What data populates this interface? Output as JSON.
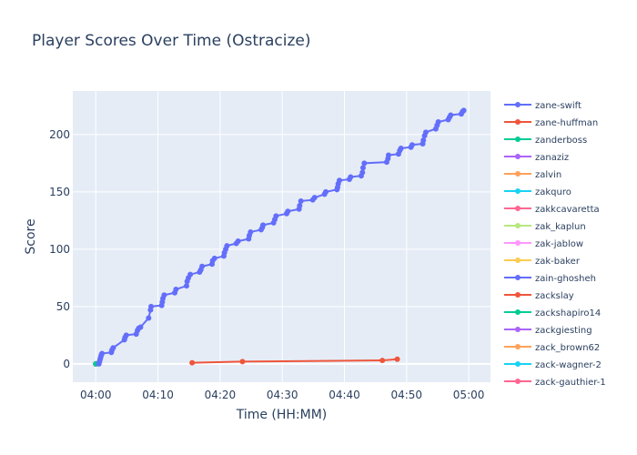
{
  "chart_data": {
    "type": "line",
    "title": "Player Scores Over Time (Ostracize)",
    "xlabel": "Time (HH:MM)",
    "ylabel": "Score",
    "x_ticks": [
      "04:00",
      "04:10",
      "04:20",
      "04:30",
      "04:40",
      "04:50",
      "05:00"
    ],
    "y_ticks": [
      0,
      50,
      100,
      150,
      200
    ],
    "x_range_minutes": [
      -3.7,
      63.5
    ],
    "y_range": [
      -16,
      238
    ],
    "grid": true,
    "legend_position": "right",
    "series": [
      {
        "name": "zane-swift",
        "color": "#636efa",
        "points": [
          {
            "t": 0.5,
            "y": 0
          },
          {
            "t": 0.6,
            "y": 2
          },
          {
            "t": 0.7,
            "y": 4
          },
          {
            "t": 0.8,
            "y": 6
          },
          {
            "t": 0.9,
            "y": 8
          },
          {
            "t": 1.0,
            "y": 9
          },
          {
            "t": 2.5,
            "y": 10
          },
          {
            "t": 2.6,
            "y": 12
          },
          {
            "t": 2.8,
            "y": 14
          },
          {
            "t": 4.6,
            "y": 21
          },
          {
            "t": 4.7,
            "y": 23
          },
          {
            "t": 4.9,
            "y": 25
          },
          {
            "t": 6.5,
            "y": 26
          },
          {
            "t": 6.7,
            "y": 29
          },
          {
            "t": 6.9,
            "y": 31
          },
          {
            "t": 7.2,
            "y": 32
          },
          {
            "t": 8.5,
            "y": 40
          },
          {
            "t": 8.8,
            "y": 47
          },
          {
            "t": 8.9,
            "y": 50
          },
          {
            "t": 10.6,
            "y": 51
          },
          {
            "t": 10.7,
            "y": 54
          },
          {
            "t": 10.8,
            "y": 57
          },
          {
            "t": 11.0,
            "y": 60
          },
          {
            "t": 12.7,
            "y": 62
          },
          {
            "t": 12.9,
            "y": 65
          },
          {
            "t": 14.6,
            "y": 68
          },
          {
            "t": 14.7,
            "y": 72
          },
          {
            "t": 14.9,
            "y": 75
          },
          {
            "t": 15.2,
            "y": 78
          },
          {
            "t": 16.7,
            "y": 80
          },
          {
            "t": 16.9,
            "y": 82
          },
          {
            "t": 17.1,
            "y": 85
          },
          {
            "t": 18.7,
            "y": 87
          },
          {
            "t": 18.8,
            "y": 90
          },
          {
            "t": 19.1,
            "y": 92
          },
          {
            "t": 20.6,
            "y": 94
          },
          {
            "t": 20.7,
            "y": 97
          },
          {
            "t": 20.9,
            "y": 100
          },
          {
            "t": 21.1,
            "y": 103
          },
          {
            "t": 22.6,
            "y": 105
          },
          {
            "t": 22.9,
            "y": 107
          },
          {
            "t": 24.6,
            "y": 109
          },
          {
            "t": 24.7,
            "y": 112
          },
          {
            "t": 24.9,
            "y": 115
          },
          {
            "t": 26.6,
            "y": 117
          },
          {
            "t": 26.8,
            "y": 119
          },
          {
            "t": 26.9,
            "y": 121
          },
          {
            "t": 28.6,
            "y": 123
          },
          {
            "t": 28.8,
            "y": 126
          },
          {
            "t": 29.0,
            "y": 129
          },
          {
            "t": 30.7,
            "y": 131
          },
          {
            "t": 30.9,
            "y": 133
          },
          {
            "t": 32.7,
            "y": 135
          },
          {
            "t": 32.8,
            "y": 138
          },
          {
            "t": 33.0,
            "y": 142
          },
          {
            "t": 34.9,
            "y": 143
          },
          {
            "t": 35.2,
            "y": 145
          },
          {
            "t": 36.8,
            "y": 148
          },
          {
            "t": 37.0,
            "y": 150
          },
          {
            "t": 38.8,
            "y": 152
          },
          {
            "t": 38.9,
            "y": 154
          },
          {
            "t": 39.0,
            "y": 157
          },
          {
            "t": 39.2,
            "y": 160
          },
          {
            "t": 40.8,
            "y": 161
          },
          {
            "t": 41.0,
            "y": 163
          },
          {
            "t": 42.7,
            "y": 164
          },
          {
            "t": 42.9,
            "y": 167
          },
          {
            "t": 43.0,
            "y": 171
          },
          {
            "t": 43.2,
            "y": 175
          },
          {
            "t": 46.8,
            "y": 176
          },
          {
            "t": 47.0,
            "y": 179
          },
          {
            "t": 47.1,
            "y": 182
          },
          {
            "t": 48.7,
            "y": 183
          },
          {
            "t": 48.9,
            "y": 186
          },
          {
            "t": 49.1,
            "y": 188
          },
          {
            "t": 50.7,
            "y": 189
          },
          {
            "t": 50.9,
            "y": 191
          },
          {
            "t": 52.6,
            "y": 192
          },
          {
            "t": 52.7,
            "y": 195
          },
          {
            "t": 52.9,
            "y": 199
          },
          {
            "t": 53.1,
            "y": 202
          },
          {
            "t": 54.7,
            "y": 205
          },
          {
            "t": 54.9,
            "y": 208
          },
          {
            "t": 55.1,
            "y": 211
          },
          {
            "t": 56.7,
            "y": 213
          },
          {
            "t": 56.9,
            "y": 215
          },
          {
            "t": 57.1,
            "y": 217
          },
          {
            "t": 58.8,
            "y": 218
          },
          {
            "t": 59.0,
            "y": 220
          },
          {
            "t": 59.2,
            "y": 221
          }
        ]
      },
      {
        "name": "zane-huffman",
        "color": "#ef553b",
        "points": [
          {
            "t": 15.5,
            "y": 1
          },
          {
            "t": 23.6,
            "y": 2
          },
          {
            "t": 46.1,
            "y": 3
          },
          {
            "t": 48.5,
            "y": 4
          }
        ]
      },
      {
        "name": "zanderboss",
        "color": "#00cc96",
        "points": [
          {
            "t": 0,
            "y": 0
          }
        ]
      },
      {
        "name": "zanaziz",
        "color": "#ab63fa",
        "points": [
          {
            "t": 0,
            "y": 0
          }
        ]
      },
      {
        "name": "zalvin",
        "color": "#ffa15a",
        "points": [
          {
            "t": 0,
            "y": 0
          }
        ]
      },
      {
        "name": "zakquro",
        "color": "#19d3f3",
        "points": [
          {
            "t": 0,
            "y": 0
          }
        ]
      },
      {
        "name": "zakkcavaretta",
        "color": "#ff6692",
        "points": [
          {
            "t": 0,
            "y": 0
          }
        ]
      },
      {
        "name": "zak_kaplun",
        "color": "#b6e880",
        "points": [
          {
            "t": 0,
            "y": 0
          }
        ]
      },
      {
        "name": "zak-jablow",
        "color": "#ff97ff",
        "points": [
          {
            "t": 0,
            "y": 0
          }
        ]
      },
      {
        "name": "zak-baker",
        "color": "#fecb52",
        "points": [
          {
            "t": 0,
            "y": 0
          }
        ]
      },
      {
        "name": "zain-ghosheh",
        "color": "#636efa",
        "points": [
          {
            "t": 0,
            "y": 0
          }
        ]
      },
      {
        "name": "zackslay",
        "color": "#ef553b",
        "points": [
          {
            "t": 0,
            "y": 0
          }
        ]
      },
      {
        "name": "zackshapiro14",
        "color": "#00cc96",
        "points": [
          {
            "t": 0,
            "y": 0
          }
        ]
      },
      {
        "name": "zackgiesting",
        "color": "#ab63fa",
        "points": [
          {
            "t": 0,
            "y": 0
          }
        ]
      },
      {
        "name": "zack_brown62",
        "color": "#ffa15a",
        "points": [
          {
            "t": 0,
            "y": 0
          }
        ]
      },
      {
        "name": "zack-wagner-2",
        "color": "#19d3f3",
        "points": [
          {
            "t": 0,
            "y": 0
          }
        ]
      },
      {
        "name": "zack-gauthier-1",
        "color": "#ff6692",
        "points": [
          {
            "t": 0,
            "y": 0
          }
        ]
      }
    ]
  }
}
